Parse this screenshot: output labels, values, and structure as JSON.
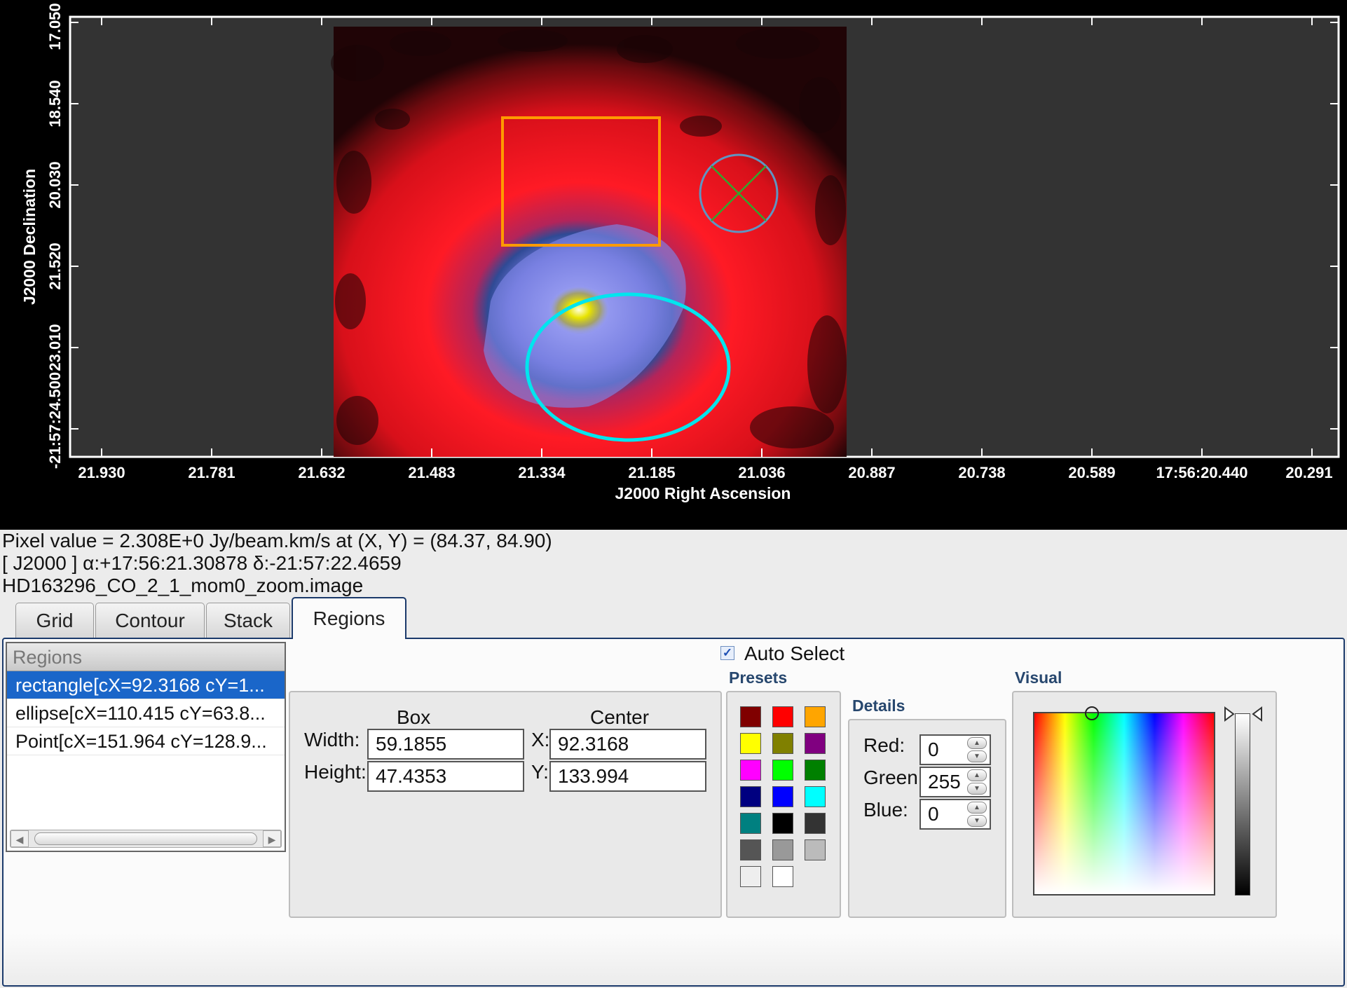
{
  "viewer": {
    "colors": {
      "background": "#000000",
      "frame": "#333333",
      "box_region": "#ff9a00",
      "ellipse_region": "#00e5ee",
      "point_region": "#5f95c2"
    },
    "y_axis_label": "J2000 Declination",
    "x_axis_label": "J2000 Right Ascension",
    "y_ticks": [
      "17.050",
      "18.540",
      "20.030",
      "21.520",
      "23.010",
      "-21:57:24.500"
    ],
    "x_ticks": [
      "21.930",
      "21.781",
      "21.632",
      "21.483",
      "21.334",
      "21.185",
      "21.036",
      "20.887",
      "20.738",
      "20.589",
      "17:56:20.440",
      "20.291"
    ]
  },
  "status": {
    "pixel_value": "Pixel value = 2.308E+0 Jy/beam.km/s at (X, Y) = (84.37, 84.90)",
    "coords": "[ J2000 ] α:+17:56:21.30878 δ:-21:57:22.4659",
    "image_name": "HD163296_CO_2_1_mom0_zoom.image"
  },
  "tabs": [
    {
      "label": "Grid"
    },
    {
      "label": "Contour"
    },
    {
      "label": "Stack"
    },
    {
      "label": "Regions",
      "active": true
    }
  ],
  "regions": {
    "header": "Regions",
    "items": [
      {
        "label": "rectangle[cX=92.3168 cY=1...",
        "selected": true
      },
      {
        "label": "ellipse[cX=110.415 cY=63.8..."
      },
      {
        "label": "Point[cX=151.964 cY=128.9..."
      }
    ]
  },
  "auto_select": {
    "label": "Auto Select",
    "checked": true
  },
  "box": {
    "title": "Box",
    "width_label": "Width:",
    "height_label": "Height:",
    "width": "59.1855",
    "height": "47.4353"
  },
  "center": {
    "title": "Center",
    "x_label": "X:",
    "y_label": "Y:",
    "x": "92.3168",
    "y": "133.994"
  },
  "presets": {
    "title": "Presets",
    "colors": [
      "#800000",
      "#ff0000",
      "#ffa500",
      "#ffff00",
      "#808000",
      "#800080",
      "#ff00ff",
      "#00ff00",
      "#008000",
      "#000080",
      "#0000ff",
      "#00ffff",
      "#008080",
      "#000000",
      "#333333",
      "#555555",
      "#999999",
      "#bbbbbb",
      "#eeeeee",
      "#ffffff"
    ]
  },
  "details": {
    "title": "Details",
    "red_label": "Red:",
    "green_label": "Green:",
    "blue_label": "Blue:",
    "red": "0",
    "green": "255",
    "blue": "0"
  },
  "visual": {
    "title": "Visual"
  }
}
